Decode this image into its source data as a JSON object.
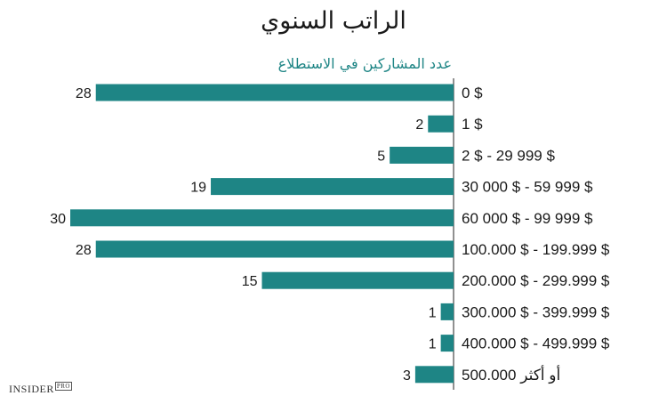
{
  "chart_data": {
    "type": "bar",
    "orientation": "horizontal",
    "title": "الراتب السنوي",
    "xlabel": "عدد المشاركين في الاستطلاع",
    "ylabel": "",
    "categories": [
      "0 $",
      "1 $",
      "2 $ - 29 999 $",
      "30 000 $ - 59 999 $",
      "60 000 $ - 99 999 $",
      "100.000 $ - 199.999 $",
      "200.000 $ - 299.999 $",
      "300.000 $ - 399.999 $",
      "400.000 $ - 499.999 $",
      "500.000  أو أكثر"
    ],
    "values": [
      28,
      2,
      5,
      19,
      30,
      28,
      15,
      1,
      1,
      3
    ],
    "xlim": [
      0,
      30
    ],
    "bar_color": "#1e8585",
    "grid": false,
    "legend": "none"
  },
  "brand": {
    "name": "INSIDER",
    "suffix": "PRO"
  }
}
